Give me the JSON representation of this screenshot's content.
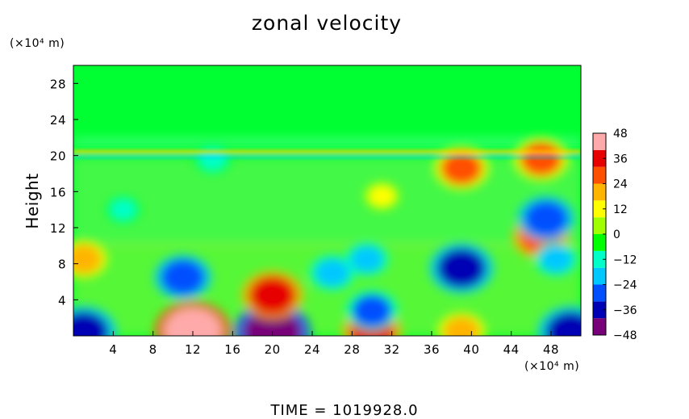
{
  "chart_data": {
    "type": "heatmap",
    "title": "zonal velocity",
    "xlabel": "",
    "ylabel": "Height",
    "x_unit_label": "(×10⁴ m)",
    "y_unit_label": "(×10⁴ m)",
    "xlim": [
      0,
      51
    ],
    "ylim": [
      0,
      30
    ],
    "x_ticks": [
      4,
      8,
      12,
      16,
      20,
      24,
      28,
      32,
      36,
      40,
      44,
      48
    ],
    "y_ticks": [
      4,
      8,
      12,
      16,
      20,
      24,
      28
    ],
    "colorbar": {
      "min": -48,
      "max": 48,
      "ticks": [
        48,
        36,
        24,
        12,
        0,
        -12,
        -24,
        -36,
        -48
      ],
      "colors": [
        "#780078",
        "#0000b4",
        "#0050ff",
        "#00c8ff",
        "#00ffc8",
        "#00ff00",
        "#a0ff00",
        "#ffff00",
        "#ffb400",
        "#ff5000",
        "#e60000",
        "#ffaaaa"
      ]
    },
    "field_features": [
      {
        "x": 12,
        "y": 0.5,
        "value": 46
      },
      {
        "x": 30,
        "y": 0.5,
        "value": 32
      },
      {
        "x": 39,
        "y": 0.5,
        "value": 22
      },
      {
        "x": 20,
        "y": 0.4,
        "value": -46
      },
      {
        "x": 1,
        "y": 0.4,
        "value": -38
      },
      {
        "x": 50,
        "y": 0.4,
        "value": -38
      },
      {
        "x": 20,
        "y": 4.5,
        "value": 34
      },
      {
        "x": 11,
        "y": 6.5,
        "value": -30
      },
      {
        "x": 39,
        "y": 7.5,
        "value": -36
      },
      {
        "x": 30,
        "y": 2.8,
        "value": -26
      },
      {
        "x": 26,
        "y": 7,
        "value": -20
      },
      {
        "x": 29.5,
        "y": 8.5,
        "value": -18
      },
      {
        "x": 1,
        "y": 8.5,
        "value": 22
      },
      {
        "x": 47,
        "y": 11,
        "value": 30
      },
      {
        "x": 48.5,
        "y": 8.5,
        "value": -18
      },
      {
        "x": 47.5,
        "y": 13,
        "value": -30
      },
      {
        "x": 5,
        "y": 14,
        "value": -12
      },
      {
        "x": 31,
        "y": 15.5,
        "value": 12
      },
      {
        "x": 39,
        "y": 18.6,
        "value": 28
      },
      {
        "x": 47,
        "y": 19.6,
        "value": 28
      },
      {
        "x": 14,
        "y": 19.6,
        "value": -14
      }
    ],
    "time_label": "TIME  =  1019928.0"
  }
}
